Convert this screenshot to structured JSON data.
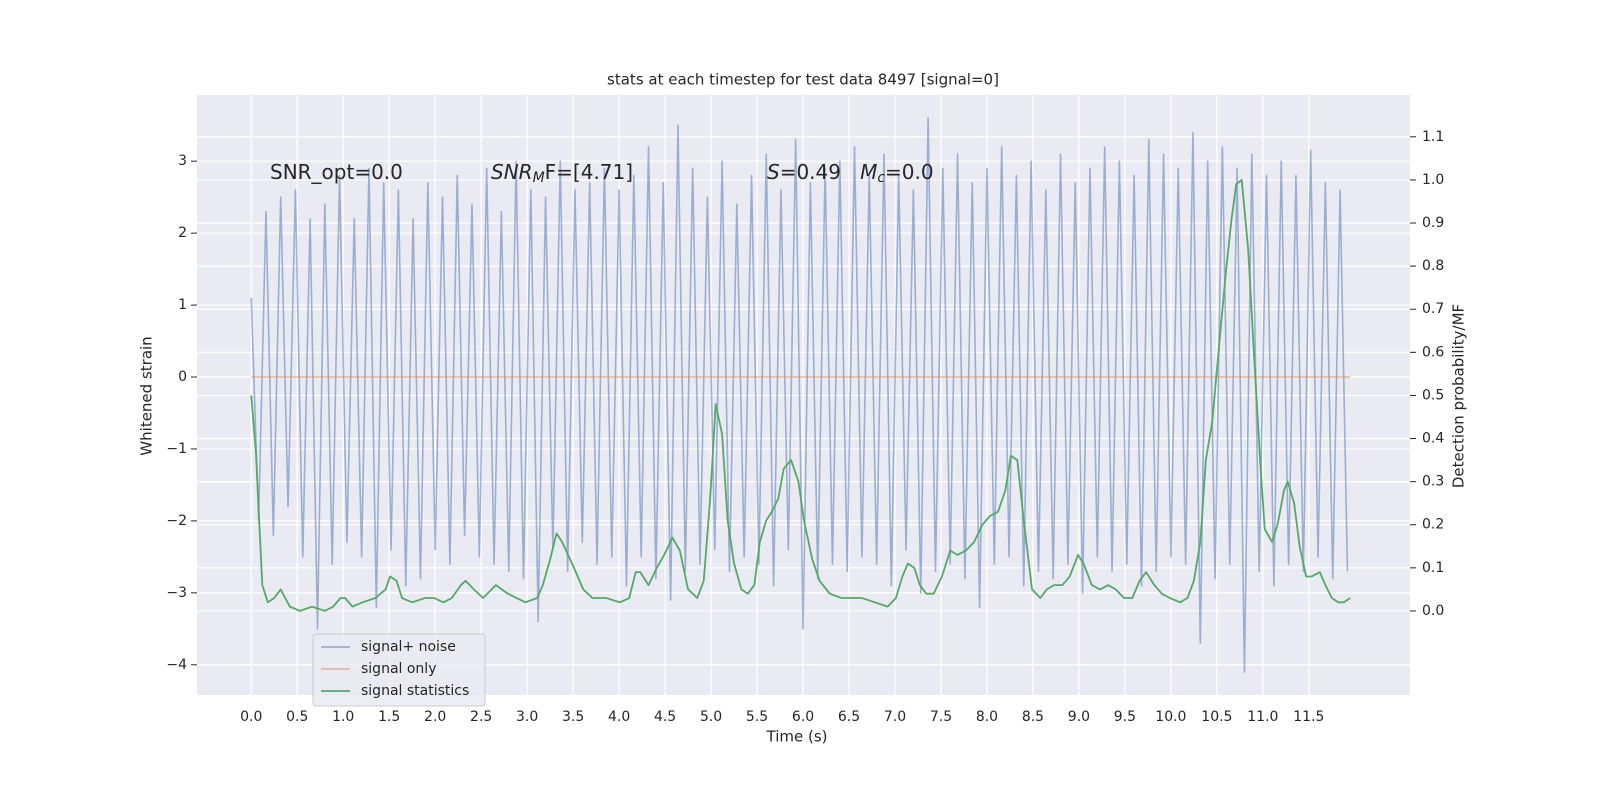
{
  "chart_data": {
    "type": "line",
    "title": "stats at each timestep for test data 8497 [signal=0]",
    "xlabel": "Time (s)",
    "ylabel": "Whitened strain",
    "y2label": "Detection probability/MF",
    "xlim": [
      -0.59,
      12.6
    ],
    "ylim": [
      -4.42,
      3.92
    ],
    "y2lim": [
      -0.195,
      1.197
    ],
    "xticks": [
      {
        "value": 0,
        "label": "0.0"
      },
      0.5,
      {
        "value": 1,
        "label": "1.0"
      },
      1.5,
      {
        "value": 2,
        "label": "2.0"
      },
      2.5,
      {
        "value": 3,
        "label": "3.0"
      },
      3.5,
      {
        "value": 4,
        "label": "4.0"
      },
      4.5,
      {
        "value": 5,
        "label": "5.0"
      },
      5.5,
      {
        "value": 6,
        "label": "6.0"
      },
      6.5,
      {
        "value": 7,
        "label": "7.0"
      },
      7.5,
      {
        "value": 8,
        "label": "8.0"
      },
      8.5,
      {
        "value": 9,
        "label": "9.0"
      },
      9.5,
      {
        "value": 10,
        "label": "10.0"
      },
      10.5,
      {
        "value": 11,
        "label": "11.0"
      },
      11.5
    ],
    "yticks": [
      {
        "value": -4,
        "label": "−4"
      },
      {
        "value": -3,
        "label": "−3"
      },
      {
        "value": -2,
        "label": "−2"
      },
      {
        "value": -1,
        "label": "−1"
      },
      0,
      1,
      2,
      3
    ],
    "y2ticks": [
      {
        "value": 0,
        "label": "0.0"
      },
      0.1,
      0.2,
      0.3,
      0.4,
      0.5,
      0.6,
      0.7,
      0.8,
      0.9,
      {
        "value": 1,
        "label": "1.0"
      },
      1.1
    ],
    "grid": true,
    "legend": "lower left",
    "annotations": [
      [
        {
          "text": "SNR_opt=0.0"
        }
      ],
      [
        {
          "text": "SNR",
          "italic": true
        },
        {
          "text": "M",
          "italic": true,
          "sub": true
        },
        {
          "text": "F=[4.71]"
        }
      ],
      [
        {
          "text": "S",
          "italic": true
        },
        {
          "text": "=0.49   "
        },
        {
          "text": "M",
          "italic": true
        },
        {
          "text": "c",
          "italic": true,
          "sub": true
        },
        {
          "text": "=0.0"
        }
      ]
    ],
    "series": [
      {
        "name": "signal+ noise",
        "color": "#4c72b0",
        "axis": "y",
        "x": [
          0,
          0.08,
          0.16,
          0.24,
          0.32,
          0.4,
          0.48,
          0.56,
          0.64,
          0.72,
          0.8,
          0.88,
          0.96,
          1.04,
          1.12,
          1.2,
          1.28,
          1.36,
          1.44,
          1.52,
          1.6,
          1.68,
          1.76,
          1.84,
          1.92,
          2,
          2.08,
          2.16,
          2.24,
          2.32,
          2.4,
          2.48,
          2.56,
          2.64,
          2.72,
          2.8,
          2.88,
          2.96,
          3.04,
          3.12,
          3.2,
          3.28,
          3.36,
          3.44,
          3.52,
          3.6,
          3.68,
          3.76,
          3.84,
          3.92,
          4,
          4.08,
          4.16,
          4.24,
          4.32,
          4.4,
          4.48,
          4.56,
          4.64,
          4.72,
          4.8,
          4.88,
          4.96,
          5.04,
          5.12,
          5.2,
          5.28,
          5.36,
          5.44,
          5.52,
          5.6,
          5.68,
          5.76,
          5.84,
          5.92,
          6,
          6.08,
          6.16,
          6.24,
          6.32,
          6.4,
          6.48,
          6.56,
          6.64,
          6.72,
          6.8,
          6.88,
          6.96,
          7.04,
          7.12,
          7.2,
          7.28,
          7.36,
          7.44,
          7.52,
          7.6,
          7.68,
          7.76,
          7.84,
          7.92,
          8,
          8.08,
          8.16,
          8.24,
          8.32,
          8.4,
          8.48,
          8.56,
          8.64,
          8.72,
          8.8,
          8.88,
          8.96,
          9.04,
          9.12,
          9.2,
          9.28,
          9.36,
          9.44,
          9.52,
          9.6,
          9.68,
          9.76,
          9.84,
          9.92,
          10,
          10.08,
          10.16,
          10.24,
          10.32,
          10.4,
          10.48,
          10.56,
          10.64,
          10.72,
          10.8,
          10.88,
          10.96,
          11.04,
          11.12,
          11.2,
          11.28,
          11.36,
          11.44,
          11.52,
          11.6,
          11.68,
          11.76,
          11.84,
          11.92
        ],
        "values": [
          1.1,
          -2.0,
          2.3,
          -2.2,
          2.5,
          -1.8,
          2.6,
          -2.5,
          2.2,
          -3.5,
          2.4,
          -2.6,
          2.8,
          -2.3,
          2.2,
          -2.5,
          2.9,
          -3.2,
          2.7,
          -2.4,
          2.6,
          -2.9,
          2.2,
          -2.8,
          2.7,
          -2.4,
          2.5,
          -2.6,
          2.8,
          -2.2,
          2.4,
          -2.5,
          2.9,
          -2.6,
          2.3,
          -2.7,
          3.0,
          -2.8,
          2.6,
          -3.4,
          2.5,
          -2.4,
          3.0,
          -2.7,
          2.6,
          -2.3,
          2.7,
          -2.6,
          2.9,
          -2.5,
          2.6,
          -2.9,
          2.8,
          -2.5,
          3.2,
          -2.8,
          2.7,
          -3.1,
          3.5,
          -2.7,
          2.9,
          -2.6,
          2.5,
          -2.4,
          3.0,
          -2.7,
          2.4,
          -2.5,
          2.8,
          -2.6,
          3.1,
          -2.9,
          2.6,
          -2.4,
          3.3,
          -3.5,
          2.7,
          -2.8,
          2.9,
          -2.6,
          3.0,
          -2.7,
          3.2,
          -2.5,
          2.8,
          -2.6,
          3.1,
          -2.9,
          2.8,
          -2.4,
          2.6,
          -3.0,
          3.6,
          -2.7,
          2.9,
          -2.6,
          3.1,
          -2.8,
          2.7,
          -3.2,
          2.9,
          -2.6,
          3.2,
          -2.5,
          2.8,
          -2.9,
          3.0,
          -2.7,
          2.6,
          -2.8,
          3.1,
          -2.6,
          2.7,
          -3.0,
          2.9,
          -2.5,
          3.2,
          -2.7,
          3.0,
          -2.6,
          2.8,
          -2.9,
          3.3,
          -2.7,
          3.1,
          -2.5,
          2.9,
          -2.6,
          3.4,
          -3.7,
          3.0,
          -2.8,
          3.2,
          -2.6,
          2.9,
          -4.1,
          3.1,
          -2.7,
          2.8,
          -2.9,
          3.0,
          -2.6,
          2.8,
          -2.7,
          3.15,
          -2.5,
          2.7,
          -2.8,
          2.6,
          -2.7
        ]
      },
      {
        "name": "signal only",
        "color": "#dd8452",
        "axis": "y",
        "x": [
          0,
          11.95
        ],
        "values": [
          0,
          0
        ]
      },
      {
        "name": "signal statistics",
        "color": "#55a868",
        "axis": "y2",
        "x": [
          0.0,
          0.05,
          0.12,
          0.18,
          0.25,
          0.32,
          0.42,
          0.53,
          0.66,
          0.8,
          0.89,
          0.97,
          1.02,
          1.1,
          1.21,
          1.35,
          1.46,
          1.51,
          1.58,
          1.64,
          1.75,
          1.89,
          1.99,
          2.09,
          2.18,
          2.28,
          2.33,
          2.42,
          2.52,
          2.66,
          2.79,
          2.98,
          3.11,
          3.17,
          3.25,
          3.32,
          3.38,
          3.51,
          3.61,
          3.71,
          3.86,
          4.01,
          4.11,
          4.18,
          4.23,
          4.32,
          4.41,
          4.49,
          4.58,
          4.66,
          4.75,
          4.85,
          4.92,
          4.99,
          5.05,
          5.12,
          5.18,
          5.25,
          5.33,
          5.4,
          5.47,
          5.53,
          5.6,
          5.66,
          5.73,
          5.79,
          5.87,
          5.95,
          6.01,
          6.1,
          6.18,
          6.29,
          6.42,
          6.53,
          6.64,
          6.78,
          6.92,
          7.01,
          7.08,
          7.14,
          7.21,
          7.27,
          7.34,
          7.42,
          7.51,
          7.6,
          7.68,
          7.77,
          7.86,
          7.95,
          8.03,
          8.12,
          8.2,
          8.26,
          8.33,
          8.4,
          8.49,
          8.58,
          8.65,
          8.73,
          8.82,
          8.9,
          8.99,
          9.05,
          9.14,
          9.23,
          9.32,
          9.4,
          9.49,
          9.58,
          9.66,
          9.73,
          9.82,
          9.9,
          9.99,
          10.1,
          10.18,
          10.25,
          10.32,
          10.38,
          10.45,
          10.53,
          10.6,
          10.66,
          10.71,
          10.77,
          10.84,
          10.9,
          10.97,
          11.02,
          11.1,
          11.16,
          11.23,
          11.27,
          11.34,
          11.4,
          11.47,
          11.53,
          11.62,
          11.68,
          11.75,
          11.82,
          11.88,
          11.95
        ],
        "values": [
          0.5,
          0.37,
          0.06,
          0.02,
          0.03,
          0.05,
          0.01,
          0.0,
          0.01,
          0.0,
          0.01,
          0.03,
          0.03,
          0.01,
          0.02,
          0.03,
          0.05,
          0.08,
          0.07,
          0.03,
          0.02,
          0.03,
          0.03,
          0.02,
          0.03,
          0.06,
          0.07,
          0.05,
          0.03,
          0.06,
          0.04,
          0.02,
          0.03,
          0.06,
          0.12,
          0.18,
          0.16,
          0.1,
          0.05,
          0.03,
          0.03,
          0.02,
          0.03,
          0.09,
          0.09,
          0.06,
          0.1,
          0.13,
          0.17,
          0.14,
          0.05,
          0.03,
          0.07,
          0.26,
          0.48,
          0.41,
          0.21,
          0.11,
          0.05,
          0.04,
          0.06,
          0.16,
          0.21,
          0.23,
          0.26,
          0.33,
          0.35,
          0.3,
          0.21,
          0.12,
          0.07,
          0.04,
          0.03,
          0.03,
          0.03,
          0.02,
          0.01,
          0.03,
          0.08,
          0.11,
          0.1,
          0.06,
          0.04,
          0.04,
          0.08,
          0.14,
          0.13,
          0.14,
          0.16,
          0.2,
          0.22,
          0.23,
          0.28,
          0.36,
          0.35,
          0.21,
          0.05,
          0.03,
          0.05,
          0.06,
          0.06,
          0.08,
          0.13,
          0.11,
          0.06,
          0.05,
          0.06,
          0.05,
          0.03,
          0.03,
          0.07,
          0.09,
          0.06,
          0.04,
          0.03,
          0.02,
          0.03,
          0.07,
          0.16,
          0.35,
          0.44,
          0.63,
          0.79,
          0.91,
          0.99,
          1.0,
          0.84,
          0.61,
          0.35,
          0.19,
          0.16,
          0.2,
          0.28,
          0.3,
          0.25,
          0.15,
          0.08,
          0.08,
          0.09,
          0.06,
          0.03,
          0.02,
          0.02,
          0.03
        ]
      }
    ]
  }
}
